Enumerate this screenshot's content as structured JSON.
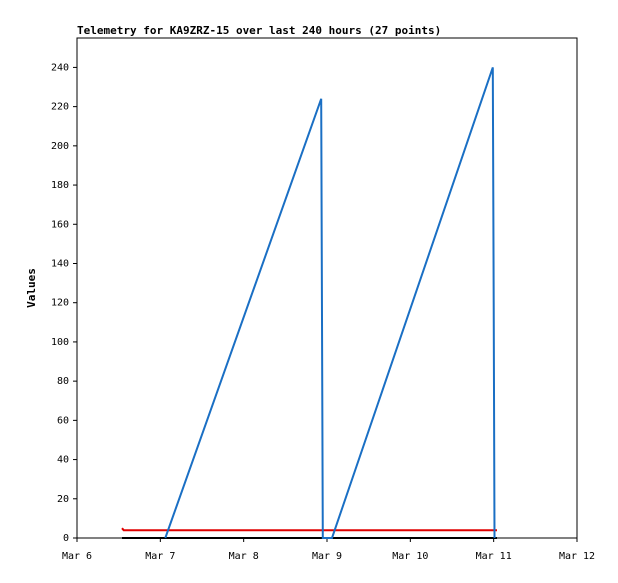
{
  "chart_data": {
    "type": "line",
    "title": "Telemetry for KA9ZRZ-15 over last 240 hours (27 points)",
    "y_label": "Values",
    "xlim": [
      0,
      6
    ],
    "xticks": [
      {
        "value": 0,
        "label": "Mar 6"
      },
      {
        "value": 1,
        "label": "Mar 7"
      },
      {
        "value": 2,
        "label": "Mar 8"
      },
      {
        "value": 3,
        "label": "Mar 9"
      },
      {
        "value": 4,
        "label": "Mar 10"
      },
      {
        "value": 5,
        "label": "Mar 11"
      },
      {
        "value": 6,
        "label": "Mar 12"
      }
    ],
    "ylim": [
      0,
      255
    ],
    "yticks": [
      0,
      20,
      40,
      60,
      80,
      100,
      120,
      140,
      160,
      180,
      200,
      220,
      240
    ],
    "series": [
      {
        "color": "#000000",
        "x": [
          0.54,
          5.04
        ],
        "values": [
          0,
          0
        ]
      },
      {
        "color": "#e00000",
        "x": [
          0.54,
          0.56,
          5.04
        ],
        "values": [
          5,
          4,
          4
        ]
      },
      {
        "color": "#1a6fc4",
        "x": [
          1.06,
          2.93,
          2.94,
          2.95,
          3.06,
          4.99,
          5.0,
          5.01
        ],
        "values": [
          0,
          224,
          112,
          0,
          0,
          240,
          120,
          0
        ]
      }
    ]
  }
}
